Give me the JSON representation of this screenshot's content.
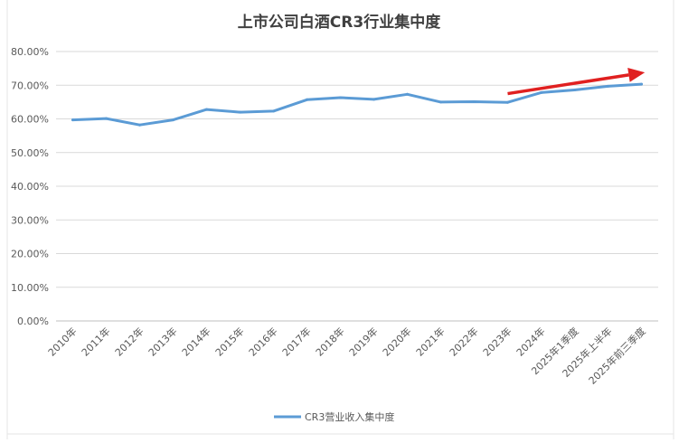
{
  "chart_data": {
    "type": "line",
    "title": "上市公司白酒CR3行业集中度",
    "xlabel": "",
    "ylabel": "",
    "categories": [
      "2010年",
      "2011年",
      "2012年",
      "2013年",
      "2014年",
      "2015年",
      "2016年",
      "2017年",
      "2018年",
      "2019年",
      "2020年",
      "2021年",
      "2022年",
      "2023年",
      "2024年",
      "2025年1季度",
      "2025年上半年",
      "2025年前三季度"
    ],
    "series": [
      {
        "name": "CR3营业收入集中度",
        "color": "#5b9bd5",
        "values": [
          0.597,
          0.601,
          0.582,
          0.597,
          0.628,
          0.62,
          0.623,
          0.657,
          0.663,
          0.658,
          0.673,
          0.65,
          0.651,
          0.649,
          0.678,
          0.686,
          0.697,
          0.703
        ]
      }
    ],
    "ylim": [
      0,
      0.8
    ],
    "yticks": [
      0,
      0.1,
      0.2,
      0.3,
      0.4,
      0.5,
      0.6,
      0.7,
      0.8
    ],
    "ytick_labels": [
      "0.00%",
      "10.00%",
      "20.00%",
      "30.00%",
      "40.00%",
      "50.00%",
      "60.00%",
      "70.00%",
      "80.00%"
    ],
    "grid": true,
    "legend_position": "bottom",
    "annotation": {
      "type": "arrow",
      "color": "#e02020",
      "from": {
        "x_index": 13,
        "y": 0.675
      },
      "to": {
        "x_index": 17.1,
        "y": 0.738
      }
    }
  }
}
